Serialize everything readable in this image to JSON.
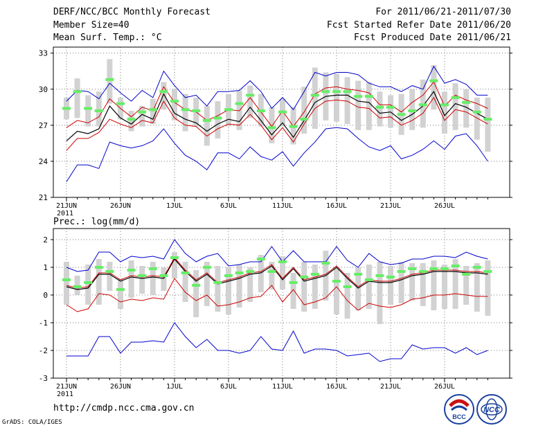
{
  "header": {
    "left1": "DERF/NCC/BCC Monthly Forecast",
    "left2": "Member Size=40",
    "left3": "Mean Surf. Temp.: °C",
    "right1": "For 2011/06/21-2011/07/30",
    "right2": "Fcst Started Refer Date 2011/06/20",
    "right3": "Fcst Produced Date 2011/06/21"
  },
  "footer": {
    "url": "http://cmdp.ncc.cma.gov.cn",
    "credit": "GrADS: COLA/IGES",
    "logo1": "BCC",
    "logo2": "NCC"
  },
  "colors": {
    "mean": "#000000",
    "spread": "#cc0000",
    "extreme": "#0000cc",
    "box": "#d2d2d2",
    "member": "#66ee66",
    "grid": "#777777"
  },
  "chart_data": [
    {
      "type": "line",
      "title": "Mean Surf. Temp.: °C",
      "x_ticks": [
        "21JUN",
        "26JUN",
        "1JUL",
        "6JUL",
        "11JUL",
        "16JUL",
        "21JUL",
        "26JUL"
      ],
      "x_year": "2011",
      "ylim": [
        21,
        33.5
      ],
      "y_ticks": [
        21,
        24,
        27,
        30,
        33
      ],
      "days": 40,
      "series": [
        {
          "name": "max",
          "values": [
            22.3,
            23.7,
            23.7,
            23.4,
            25.6,
            25.3,
            25.1,
            25.3,
            25.7,
            26.7,
            25.5,
            24.5,
            24.0,
            23.3,
            24.7,
            24.7,
            24.2,
            25.2,
            24.4,
            24.1,
            24.8,
            23.6,
            24.7,
            25.6,
            26.7,
            26.8,
            26.7,
            25.9,
            25.2,
            24.9,
            25.3,
            24.2,
            24.5,
            25.0,
            25.7,
            25.0,
            26.1,
            26.3,
            25.3,
            24.0
          ]
        },
        {
          "name": "upper",
          "values": [
            26.8,
            27.4,
            27.2,
            27.7,
            29.2,
            28.4,
            27.7,
            28.5,
            28.2,
            30.2,
            28.9,
            28.3,
            28.1,
            27.4,
            27.8,
            28.3,
            28.2,
            29.3,
            28.1,
            26.9,
            28.2,
            26.9,
            28.1,
            29.6,
            30.1,
            30.2,
            30.0,
            29.9,
            29.7,
            28.7,
            28.7,
            28.1,
            28.9,
            29.5,
            30.6,
            28.6,
            29.5,
            29.1,
            28.8,
            28.4
          ]
        },
        {
          "name": "mean",
          "values": [
            25.7,
            26.5,
            26.3,
            26.7,
            28.6,
            27.6,
            27.1,
            27.9,
            27.5,
            29.6,
            28.0,
            27.5,
            27.2,
            26.5,
            27.1,
            27.5,
            27.3,
            28.5,
            27.4,
            26.2,
            27.2,
            26.0,
            27.4,
            28.9,
            29.4,
            29.5,
            29.5,
            29.0,
            28.9,
            28.0,
            28.1,
            27.4,
            27.9,
            28.6,
            29.8,
            27.8,
            28.8,
            28.5,
            28.0,
            27.5
          ]
        },
        {
          "name": "lower",
          "values": [
            24.9,
            25.9,
            25.9,
            26.4,
            27.5,
            27.1,
            26.8,
            27.4,
            27.2,
            29.0,
            27.6,
            27.0,
            26.9,
            26.1,
            26.7,
            27.1,
            27.0,
            27.9,
            27.0,
            25.8,
            26.8,
            25.6,
            27.1,
            28.4,
            29.0,
            29.1,
            29.0,
            28.5,
            28.4,
            27.6,
            27.7,
            27.0,
            27.4,
            28.0,
            29.3,
            27.4,
            28.3,
            28.1,
            27.6,
            27.1
          ]
        },
        {
          "name": "min",
          "values": [
            29.0,
            29.9,
            29.8,
            29.2,
            30.5,
            29.7,
            29.0,
            29.9,
            29.3,
            31.5,
            30.3,
            29.3,
            29.5,
            28.6,
            29.8,
            29.8,
            29.9,
            30.7,
            29.8,
            28.4,
            29.3,
            28.3,
            29.8,
            31.4,
            31.1,
            31.4,
            31.4,
            31.2,
            30.5,
            30.2,
            30.2,
            29.8,
            30.3,
            30.0,
            31.9,
            30.5,
            30.8,
            30.4,
            29.5,
            29.5
          ]
        }
      ],
      "member_mean": [
        28.4,
        29.8,
        28.4,
        28.2,
        30.8,
        28.8,
        27.5,
        28.1,
        28.3,
        29.8,
        29.0,
        28.3,
        28.2,
        27.4,
        27.6,
        28.3,
        28.8,
        29.5,
        28.2,
        26.8,
        28.1,
        26.9,
        27.5,
        29.5,
        29.8,
        29.8,
        29.8,
        29.4,
        29.4,
        28.5,
        28.5,
        27.9,
        28.2,
        28.7,
        30.7,
        28.7,
        29.3,
        28.9,
        28.1,
        27.5
      ],
      "box_high": [
        29.3,
        30.9,
        29.5,
        29.8,
        32.5,
        29.3,
        28.2,
        28.6,
        29.2,
        30.6,
        30.0,
        29.6,
        29.3,
        28.6,
        29.0,
        29.6,
        29.9,
        30.3,
        29.6,
        28.5,
        29.2,
        28.5,
        30.2,
        31.8,
        31.4,
        31.3,
        31.0,
        30.7,
        30.6,
        29.8,
        29.5,
        29.6,
        30.0,
        30.8,
        32.0,
        29.8,
        30.5,
        30.0,
        29.3,
        29.3
      ],
      "box_low": [
        27.5,
        27.6,
        26.9,
        26.9,
        28.8,
        27.5,
        26.5,
        26.9,
        27.1,
        28.3,
        27.4,
        26.5,
        26.9,
        25.3,
        25.9,
        26.9,
        26.6,
        27.6,
        26.9,
        25.5,
        26.9,
        25.4,
        26.3,
        26.7,
        27.4,
        27.3,
        27.1,
        26.6,
        26.6,
        26.9,
        26.8,
        26.2,
        26.6,
        26.8,
        28.3,
        26.3,
        26.6,
        26.8,
        25.8,
        24.8
      ]
    },
    {
      "type": "line",
      "title": "Prec.: log(mm/d)",
      "x_ticks": [
        "21JUN",
        "26JUN",
        "1JUL",
        "6JUL",
        "11JUL",
        "16JUL",
        "21JUL",
        "26JUL"
      ],
      "x_year": "2011",
      "ylim": [
        -3,
        2.4
      ],
      "y_ticks": [
        -3,
        -2,
        -1,
        0,
        1,
        2
      ],
      "days": 40,
      "series": [
        {
          "name": "max",
          "values": [
            1.0,
            0.85,
            0.9,
            1.55,
            1.55,
            1.2,
            1.4,
            1.35,
            1.4,
            1.3,
            2.0,
            1.5,
            1.2,
            1.4,
            1.5,
            1.05,
            1.1,
            1.2,
            1.2,
            1.75,
            1.2,
            1.6,
            1.2,
            1.2,
            1.2,
            1.75,
            1.25,
            1.0,
            1.5,
            1.2,
            1.1,
            1.15,
            1.3,
            1.3,
            1.4,
            1.4,
            1.35,
            1.55,
            1.4,
            1.3
          ]
        },
        {
          "name": "mean",
          "values": [
            0.3,
            0.2,
            0.25,
            0.75,
            0.75,
            0.5,
            0.65,
            0.6,
            0.65,
            0.6,
            1.3,
            0.85,
            0.5,
            0.75,
            0.4,
            0.5,
            0.6,
            0.75,
            0.8,
            1.05,
            0.55,
            0.95,
            0.5,
            0.6,
            0.7,
            1.0,
            0.6,
            0.25,
            0.5,
            0.45,
            0.45,
            0.55,
            0.7,
            0.75,
            0.85,
            0.85,
            0.85,
            0.8,
            0.8,
            0.75
          ]
        },
        {
          "name": "upper",
          "values": [
            0.35,
            0.25,
            0.3,
            0.8,
            0.8,
            0.55,
            0.7,
            0.65,
            0.7,
            0.65,
            1.35,
            0.9,
            0.55,
            0.8,
            0.45,
            0.55,
            0.65,
            0.8,
            0.85,
            1.1,
            0.6,
            1.0,
            0.55,
            0.65,
            0.75,
            1.05,
            0.65,
            0.3,
            0.55,
            0.5,
            0.5,
            0.6,
            0.75,
            0.8,
            0.9,
            0.9,
            0.9,
            0.85,
            0.85,
            0.8
          ]
        },
        {
          "name": "lower",
          "values": [
            -0.35,
            -0.6,
            -0.5,
            0.05,
            0.0,
            -0.25,
            -0.15,
            -0.2,
            -0.1,
            -0.15,
            0.6,
            0.1,
            -0.2,
            0.0,
            -0.4,
            -0.35,
            -0.25,
            -0.1,
            -0.05,
            0.35,
            -0.25,
            0.2,
            -0.35,
            -0.25,
            -0.1,
            0.3,
            -0.2,
            -0.55,
            -0.3,
            -0.4,
            -0.45,
            -0.35,
            -0.15,
            -0.1,
            0.0,
            0.0,
            0.05,
            0.0,
            -0.05,
            -0.05
          ]
        },
        {
          "name": "min",
          "values": [
            -2.2,
            -2.2,
            -2.2,
            -1.5,
            -1.5,
            -2.1,
            -1.7,
            -1.7,
            -1.65,
            -1.7,
            -1.0,
            -1.5,
            -1.9,
            -1.6,
            -2.0,
            -2.0,
            -2.1,
            -2.0,
            -1.5,
            -1.95,
            -2.0,
            -1.3,
            -2.1,
            -1.95,
            -1.95,
            -2.0,
            -2.2,
            -2.15,
            -2.1,
            -2.4,
            -2.3,
            -2.3,
            -1.8,
            -1.95,
            -1.9,
            -1.9,
            -2.1,
            -1.9,
            -2.15,
            -2.0
          ]
        }
      ],
      "member_mean": [
        0.55,
        0.3,
        0.45,
        1.0,
        0.85,
        0.2,
        0.9,
        0.7,
        0.95,
        0.7,
        1.35,
        0.8,
        0.35,
        1.0,
        0.45,
        0.7,
        0.8,
        0.85,
        1.3,
        0.85,
        1.2,
        0.45,
        0.65,
        0.75,
        1.15,
        0.5,
        0.3,
        0.75,
        0.55,
        0.7,
        0.65,
        0.85,
        0.95,
        0.85,
        0.95,
        0.95,
        1.05,
        0.75,
        1.0,
        0.85
      ],
      "box_high": [
        1.2,
        0.7,
        1.1,
        1.3,
        1.2,
        0.6,
        1.25,
        1.05,
        1.2,
        1.0,
        1.55,
        1.2,
        0.9,
        1.2,
        1.05,
        1.0,
        1.1,
        1.0,
        1.45,
        1.2,
        1.4,
        0.8,
        1.2,
        1.1,
        1.6,
        1.0,
        0.8,
        1.0,
        1.1,
        1.2,
        1.05,
        1.2,
        1.15,
        1.15,
        1.25,
        1.1,
        1.3,
        1.05,
        1.15,
        1.25
      ],
      "box_low": [
        -0.35,
        0.0,
        -0.35,
        -0.35,
        0.15,
        -0.5,
        -0.1,
        0.05,
        0.0,
        0.15,
        0.6,
        -0.25,
        -0.8,
        -0.4,
        -0.6,
        -0.7,
        -0.45,
        -0.25,
        0.1,
        0.2,
        0.2,
        -0.5,
        -0.6,
        -0.5,
        -0.2,
        -0.7,
        -0.85,
        -0.55,
        -0.5,
        -1.05,
        -0.35,
        -0.3,
        -0.2,
        -0.4,
        -0.55,
        -0.5,
        -0.5,
        -0.35,
        -0.6,
        -0.75
      ]
    }
  ]
}
